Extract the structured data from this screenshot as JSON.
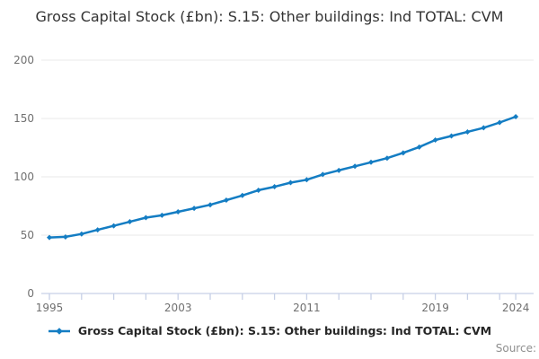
{
  "title": "Gross Capital Stock (£bn): S.15: Other buildings: Ind TOTAL: CVM",
  "legend": {
    "label": "Gross Capital Stock (£bn): S.15: Other buildings: Ind TOTAL: CVM",
    "marker": "diamond-on-line"
  },
  "footer": {
    "source_label": "Source:"
  },
  "colors": {
    "line": "#147DC3",
    "grid": "#E8E8E8",
    "axis": "#C7D0E6",
    "tick_label": "#707070",
    "title": "#333333",
    "legend_text": "#262626",
    "source_text": "#8E8E8E",
    "background": "#FFFFFF"
  },
  "chart_data": {
    "type": "line",
    "title": "Gross Capital Stock (£bn): S.15: Other buildings: Ind TOTAL: CVM",
    "xlabel": "",
    "ylabel": "",
    "x": [
      1995,
      1996,
      1997,
      1998,
      1999,
      2000,
      2001,
      2002,
      2003,
      2004,
      2005,
      2006,
      2007,
      2008,
      2009,
      2010,
      2011,
      2012,
      2013,
      2014,
      2015,
      2016,
      2017,
      2018,
      2019,
      2020,
      2021,
      2022,
      2023,
      2024
    ],
    "series": [
      {
        "name": "Gross Capital Stock (£bn): S.15: Other buildings: Ind TOTAL: CVM",
        "values": [
          48,
          48.5,
          51,
          54.5,
          58,
          61.5,
          65,
          67,
          70,
          73,
          76,
          80,
          84,
          88.5,
          91.5,
          95,
          97.5,
          102,
          105.5,
          109,
          112.5,
          116,
          120.5,
          125.5,
          131.5,
          135,
          138.5,
          142,
          146.5,
          151.5
        ]
      }
    ],
    "ylim": [
      0,
      200
    ],
    "yticks": [
      0,
      50,
      100,
      150,
      200
    ],
    "xticks_labeled": [
      1995,
      2003,
      2011,
      2019,
      2024
    ],
    "xticks_minor_step_years": 2,
    "grid": "horizontal-only",
    "marker": "diamond",
    "legend_position": "bottom"
  }
}
